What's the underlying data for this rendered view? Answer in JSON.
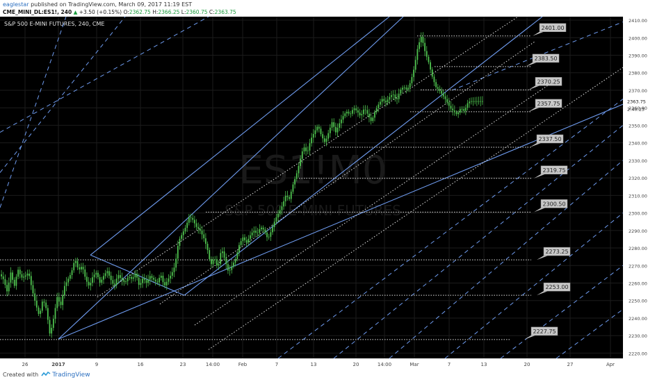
{
  "header": {
    "author": "eaglestar",
    "published_text": " published on TradingView.com, March 09, 2017 11:19 EST",
    "symbol": "CME_MINI_DL:ES1!, 240",
    "change_arrow": "▲",
    "change": "+3.50 (+0.15%)",
    "o_label": " O:",
    "o_value": "2362.75",
    "h_label": " H:",
    "h_value": "2366.25",
    "l_label": " L:",
    "l_value": "2360.75",
    "c_label": " C:",
    "c_value": "2363.75",
    "last_price": "2363.75"
  },
  "footer": {
    "created_with": "Created with",
    "brand": "TradingView"
  },
  "chart_data": {
    "type": "candlestick",
    "title": "S&P 500 E-MINI FUTURES, 240, CME",
    "watermark_symbol": "ES1!M0",
    "watermark_name": "S&P 500 E-MINI FUTURES",
    "ylim": [
      2217,
      2412
    ],
    "y_ticks": [
      2220,
      2230,
      2240,
      2250,
      2260,
      2270,
      2280,
      2290,
      2300,
      2310,
      2320,
      2330,
      2340,
      2350,
      2360,
      2370,
      2380,
      2390,
      2400,
      2410
    ],
    "y_tick_labels": [
      "2220.00",
      "2230.00",
      "2240.00",
      "2250.00",
      "2260.00",
      "2270.00",
      "2280.00",
      "2290.00",
      "2300.00",
      "2310.00",
      "2320.00",
      "2330.00",
      "2340.00",
      "2350.00",
      "2360.00",
      "2370.00",
      "2380.00",
      "2390.00",
      "2400.00",
      "2410.00"
    ],
    "x_tick_labels": [
      "26",
      "2017",
      "9",
      "16",
      "23",
      "14:00",
      "Feb",
      "7",
      "13",
      "20",
      "14:00",
      "Mar",
      "7",
      "13",
      "20",
      "27",
      "Apr"
    ],
    "last_price_label": "2363.75",
    "countdown_label": "2:40:23",
    "grid": true,
    "colors": {
      "background": "#000000",
      "grid": "#1c1c1c",
      "candle": "#4ec24e",
      "channel": "#6f9cf0",
      "dotted": "#e0e0e0",
      "label_bg": "#c8c8c8"
    },
    "price_levels": [
      {
        "label": "2401.00",
        "value": 2401.0
      },
      {
        "label": "2383.50",
        "value": 2383.5
      },
      {
        "label": "2370.25",
        "value": 2370.25
      },
      {
        "label": "2357.75",
        "value": 2357.75
      },
      {
        "label": "2337.50",
        "value": 2337.5
      },
      {
        "label": "2319.75",
        "value": 2319.75
      },
      {
        "label": "2300.50",
        "value": 2300.5
      },
      {
        "label": "2273.25",
        "value": 2273.25
      },
      {
        "label": "2253.00",
        "value": 2253.0
      },
      {
        "label": "2227.75",
        "value": 2227.75
      }
    ],
    "close_path": [
      [
        0,
        2265
      ],
      [
        5,
        2262
      ],
      [
        10,
        2255
      ],
      [
        15,
        2266
      ],
      [
        20,
        2258
      ],
      [
        25,
        2268
      ],
      [
        30,
        2263
      ],
      [
        35,
        2264
      ],
      [
        40,
        2266
      ],
      [
        45,
        2256
      ],
      [
        50,
        2248
      ],
      [
        55,
        2241
      ],
      [
        60,
        2251
      ],
      [
        65,
        2245
      ],
      [
        70,
        2230
      ],
      [
        75,
        2240
      ],
      [
        80,
        2252
      ],
      [
        85,
        2247
      ],
      [
        90,
        2258
      ],
      [
        95,
        2262
      ],
      [
        100,
        2266
      ],
      [
        105,
        2274
      ],
      [
        110,
        2267
      ],
      [
        115,
        2270
      ],
      [
        120,
        2262
      ],
      [
        125,
        2258
      ],
      [
        130,
        2264
      ],
      [
        135,
        2266
      ],
      [
        140,
        2260
      ],
      [
        145,
        2264
      ],
      [
        150,
        2267
      ],
      [
        155,
        2262
      ],
      [
        160,
        2258
      ],
      [
        165,
        2265
      ],
      [
        170,
        2262
      ],
      [
        175,
        2260
      ],
      [
        180,
        2264
      ],
      [
        185,
        2262
      ],
      [
        190,
        2266
      ],
      [
        195,
        2258
      ],
      [
        200,
        2263
      ],
      [
        205,
        2260
      ],
      [
        210,
        2264
      ],
      [
        215,
        2262
      ],
      [
        220,
        2260
      ],
      [
        225,
        2265
      ],
      [
        230,
        2258
      ],
      [
        235,
        2262
      ],
      [
        240,
        2265
      ],
      [
        245,
        2270
      ],
      [
        250,
        2284
      ],
      [
        255,
        2288
      ],
      [
        260,
        2292
      ],
      [
        265,
        2298
      ],
      [
        270,
        2296
      ],
      [
        275,
        2292
      ],
      [
        280,
        2290
      ],
      [
        285,
        2286
      ],
      [
        290,
        2280
      ],
      [
        295,
        2270
      ],
      [
        300,
        2275
      ],
      [
        305,
        2268
      ],
      [
        310,
        2280
      ],
      [
        315,
        2273
      ],
      [
        320,
        2266
      ],
      [
        325,
        2270
      ],
      [
        330,
        2274
      ],
      [
        335,
        2282
      ],
      [
        340,
        2286
      ],
      [
        345,
        2283
      ],
      [
        350,
        2287
      ],
      [
        355,
        2290
      ],
      [
        360,
        2288
      ],
      [
        365,
        2292
      ],
      [
        370,
        2290
      ],
      [
        375,
        2285
      ],
      [
        380,
        2290
      ],
      [
        385,
        2296
      ],
      [
        390,
        2300
      ],
      [
        395,
        2304
      ],
      [
        400,
        2310
      ],
      [
        405,
        2308
      ],
      [
        410,
        2316
      ],
      [
        415,
        2322
      ],
      [
        420,
        2330
      ],
      [
        425,
        2338
      ],
      [
        430,
        2334
      ],
      [
        435,
        2342
      ],
      [
        440,
        2346
      ],
      [
        445,
        2350
      ],
      [
        450,
        2344
      ],
      [
        455,
        2340
      ],
      [
        460,
        2346
      ],
      [
        465,
        2352
      ],
      [
        470,
        2346
      ],
      [
        475,
        2351
      ],
      [
        480,
        2355
      ],
      [
        485,
        2358
      ],
      [
        490,
        2356
      ],
      [
        495,
        2360
      ],
      [
        500,
        2358
      ],
      [
        505,
        2355
      ],
      [
        510,
        2360
      ],
      [
        515,
        2356
      ],
      [
        520,
        2352
      ],
      [
        525,
        2358
      ],
      [
        530,
        2362
      ],
      [
        535,
        2365
      ],
      [
        540,
        2363
      ],
      [
        545,
        2366
      ],
      [
        550,
        2368
      ],
      [
        555,
        2364
      ],
      [
        560,
        2370
      ],
      [
        565,
        2372
      ],
      [
        570,
        2370
      ],
      [
        575,
        2375
      ],
      [
        580,
        2383
      ],
      [
        585,
        2395
      ],
      [
        590,
        2401
      ],
      [
        595,
        2392
      ],
      [
        600,
        2386
      ],
      [
        605,
        2378
      ],
      [
        610,
        2372
      ],
      [
        615,
        2370
      ],
      [
        620,
        2367
      ],
      [
        625,
        2364
      ],
      [
        630,
        2360
      ],
      [
        635,
        2358
      ],
      [
        640,
        2356
      ],
      [
        645,
        2360
      ],
      [
        650,
        2358
      ],
      [
        655,
        2363
      ],
      [
        658,
        2363.75
      ]
    ]
  }
}
